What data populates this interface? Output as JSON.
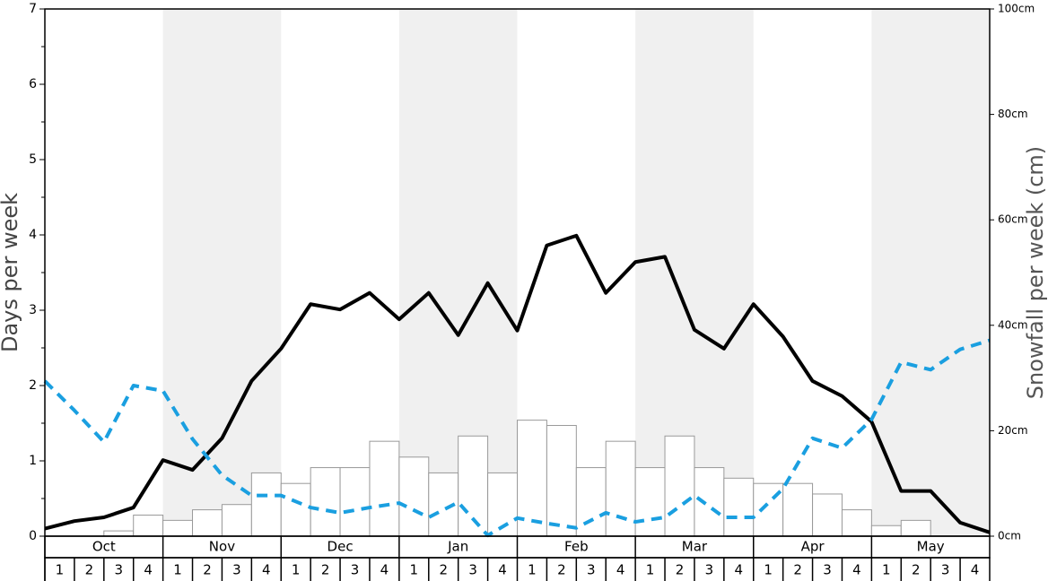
{
  "chart_data": {
    "type": "bar",
    "ylabel": "Days per week",
    "y2label": "Snowfall per week (cm)",
    "months": [
      "Oct",
      "Nov",
      "Dec",
      "Jan",
      "Feb",
      "Mar",
      "Apr",
      "May"
    ],
    "week_labels": [
      "1",
      "2",
      "3",
      "4"
    ],
    "ylim": [
      0,
      7
    ],
    "yticks": [
      0,
      1,
      2,
      3,
      4,
      5,
      6,
      7
    ],
    "y2lim": [
      0,
      100
    ],
    "y2ticks": [
      {
        "value": 0,
        "label": "0cm"
      },
      {
        "value": 20,
        "label": "20cm"
      },
      {
        "value": 40,
        "label": "40cm"
      },
      {
        "value": 60,
        "label": "60cm"
      },
      {
        "value": 80,
        "label": "80cm"
      },
      {
        "value": 100,
        "label": "100cm"
      }
    ],
    "shade_color": "#f0f0f0",
    "series": [
      {
        "type": "bar",
        "axis": "y2",
        "color": "#ffffff",
        "values": [
          0,
          0,
          1,
          4,
          3,
          5,
          6,
          12,
          10,
          13,
          13,
          18,
          15,
          12,
          19,
          12,
          22,
          21,
          13,
          18,
          13,
          19,
          13,
          11,
          10,
          10,
          8,
          5,
          2,
          3,
          0,
          0
        ]
      },
      {
        "type": "line",
        "color": "#000000",
        "dashed": false,
        "values": [
          0.1,
          0.2,
          0.25,
          0.38,
          1.01,
          0.88,
          1.3,
          2.06,
          2.49,
          3.08,
          3.01,
          3.23,
          2.88,
          3.23,
          2.67,
          3.36,
          2.73,
          3.86,
          3.99,
          3.23,
          3.64,
          3.71,
          2.74,
          2.49,
          3.08,
          2.65,
          2.06,
          1.86,
          1.52,
          0.6,
          0.6,
          0.18,
          0.05
        ]
      },
      {
        "type": "line",
        "color": "#1a9fe0",
        "dashed": true,
        "values": [
          2.06,
          1.67,
          1.25,
          2.0,
          1.93,
          1.29,
          0.81,
          0.54,
          0.54,
          0.38,
          0.31,
          0.38,
          0.44,
          0.25,
          0.45,
          0.01,
          0.24,
          0.17,
          0.11,
          0.31,
          0.19,
          0.25,
          0.54,
          0.25,
          0.25,
          0.63,
          1.3,
          1.17,
          1.55,
          2.31,
          2.21,
          2.48,
          2.6
        ]
      }
    ]
  }
}
